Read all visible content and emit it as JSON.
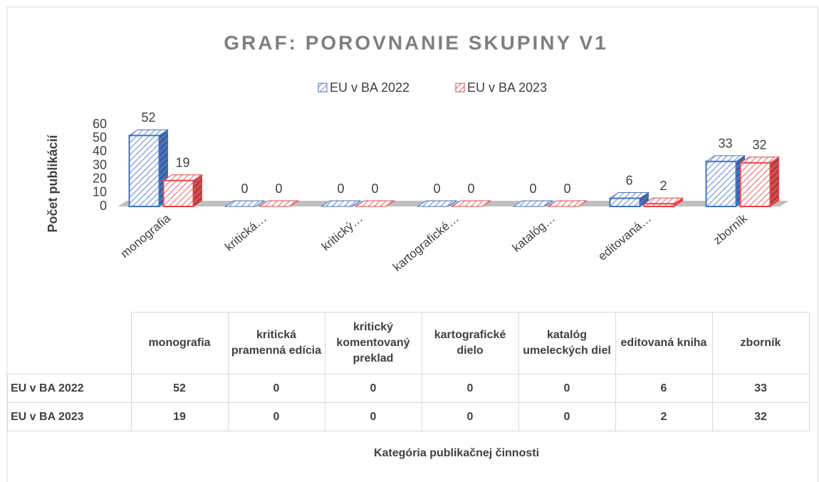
{
  "chart_data": {
    "type": "bar3d",
    "title": "GRAF: POROVNANIE SKUPINY V1",
    "y_label": "Počet publikácií",
    "x_label": "Kategória publikačnej činnosti",
    "categories": [
      "monografia",
      "kritická…",
      "kritický…",
      "kartografické…",
      "katalóg…",
      "editovaná…",
      "zborník"
    ],
    "table_categories": [
      "monografia",
      "kritická pramenná edícia",
      "kritický komentovaný preklad",
      "kartografické dielo",
      "katalóg umeleckých diel",
      "editovaná kniha",
      "zborník"
    ],
    "series": [
      {
        "name": "EU v BA 2022",
        "color": "#4472c4",
        "values": [
          52,
          0,
          0,
          0,
          0,
          6,
          33
        ]
      },
      {
        "name": "EU v BA 2023",
        "color": "#e0474c",
        "values": [
          19,
          0,
          0,
          0,
          0,
          2,
          32
        ]
      }
    ],
    "ylim": [
      0,
      60
    ],
    "yticks": [
      0,
      10,
      20,
      30,
      40,
      50,
      60
    ],
    "legend": "top"
  }
}
